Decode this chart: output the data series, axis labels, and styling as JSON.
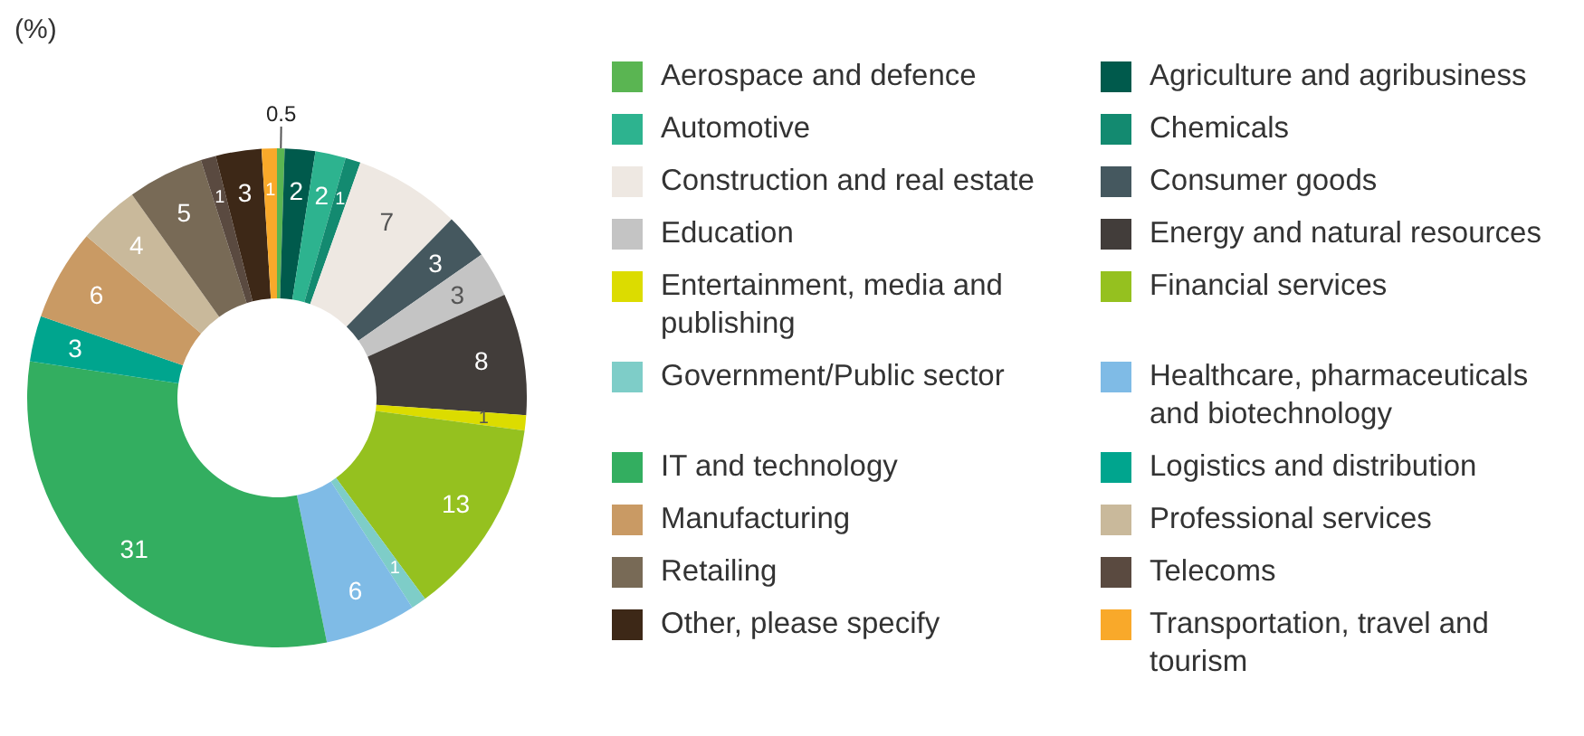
{
  "chart_data": {
    "type": "donut",
    "ylabel": "(%)",
    "categories": [
      "Aerospace and defence",
      "Agriculture and agribusiness",
      "Automotive",
      "Chemicals",
      "Construction and real estate",
      "Consumer goods",
      "Education",
      "Energy and natural resources",
      "Entertainment, media and publishing",
      "Financial services",
      "Government/Public sector",
      "Healthcare, pharmaceuticals and biotechnology",
      "IT and technology",
      "Logistics and distribution",
      "Manufacturing",
      "Professional services",
      "Retailing",
      "Telecoms",
      "Other, please specify",
      "Transportation, travel and tourism"
    ],
    "values": [
      0.5,
      2,
      2,
      1,
      7,
      3,
      3,
      8,
      1,
      13,
      1,
      6,
      31,
      3,
      6,
      4,
      5,
      1,
      3,
      1
    ],
    "colors": [
      "#5ab552",
      "#005a4c",
      "#2db38f",
      "#138a70",
      "#eee8e2",
      "#45585f",
      "#c4c4c4",
      "#423d3a",
      "#dcdc00",
      "#95c11f",
      "#7ecdc8",
      "#7fbbe6",
      "#33ae60",
      "#00a58e",
      "#c99a64",
      "#c9b99b",
      "#786a56",
      "#5a4a40",
      "#3d2817",
      "#f9a92a"
    ],
    "data_labels": true,
    "legend": "right"
  }
}
